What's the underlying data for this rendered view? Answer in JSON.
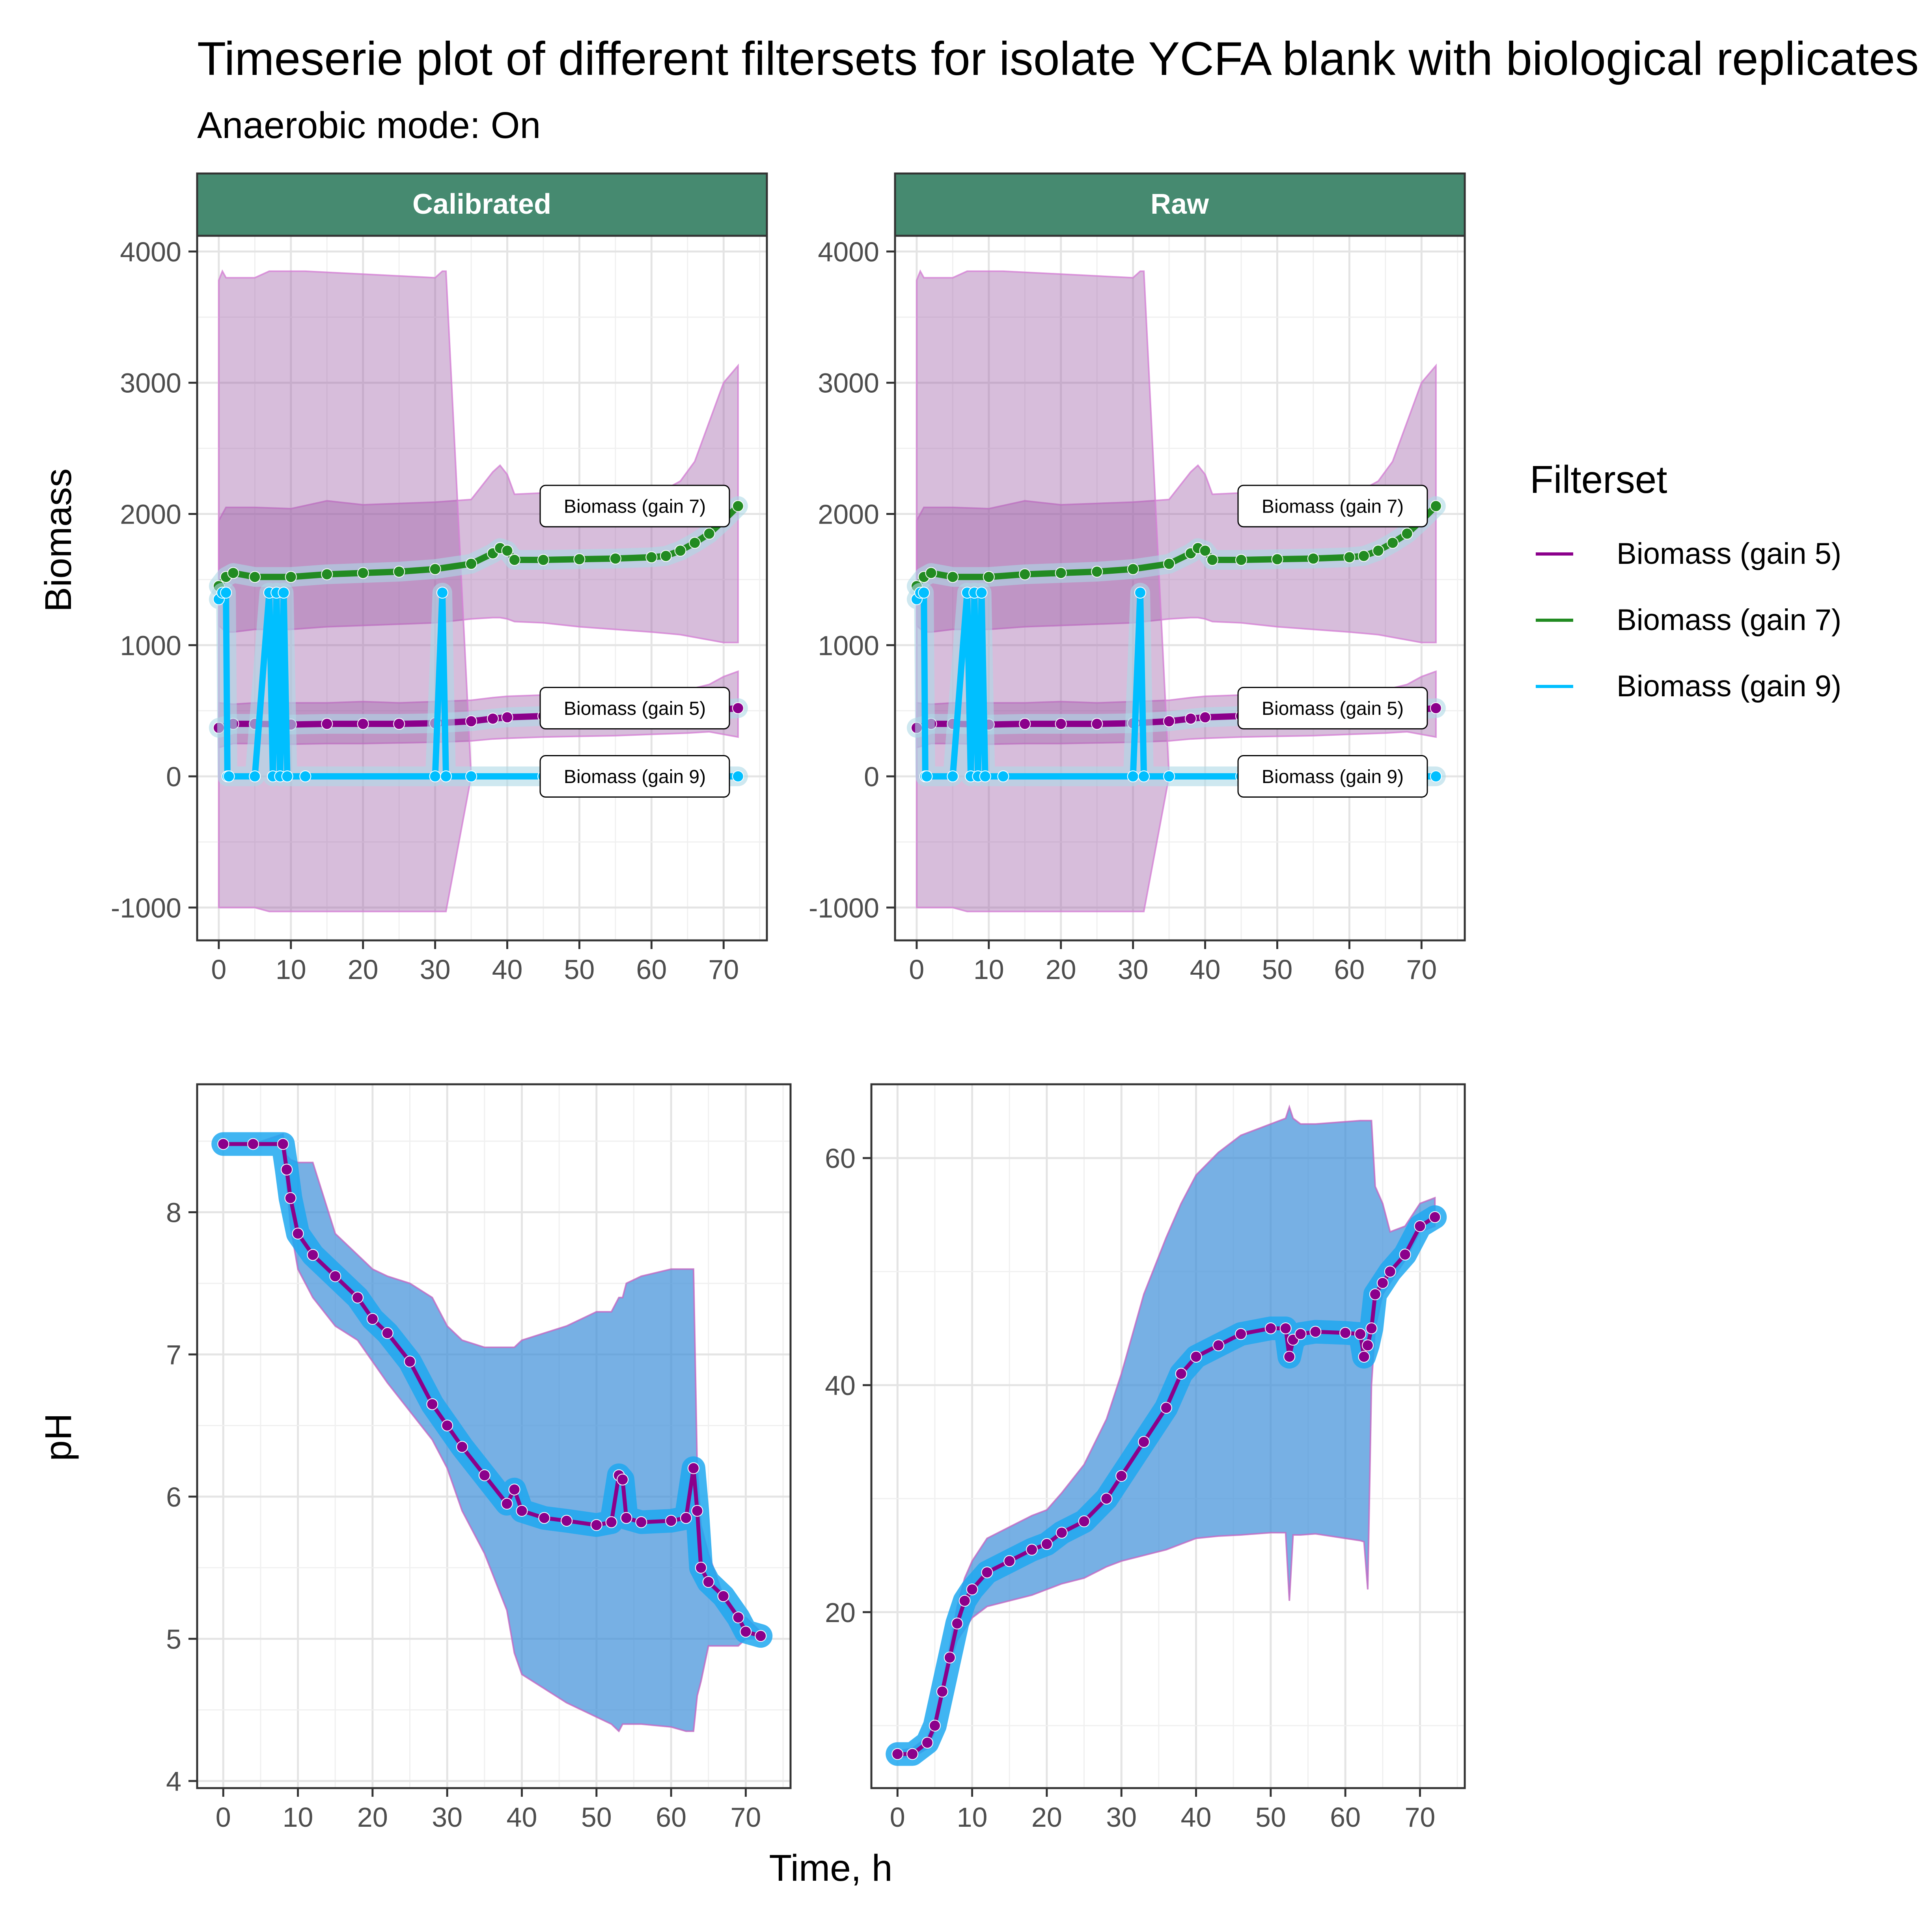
{
  "title": "Timeserie plot of different filtersets for isolate YCFA blank with biological replicates",
  "subtitle": "Anaerobic mode: On",
  "colors": {
    "gain5": "#8B008B",
    "gain7": "#228B22",
    "gain9": "#00BFFF",
    "ribbon_biomass": "#9B59A6",
    "ribbon_ph": "#3D8FD9",
    "strip": "#468A70",
    "halo": "#ADD8E6"
  },
  "legend": {
    "title": "Filterset",
    "items": [
      {
        "label": "Biomass (gain 5)",
        "color": "#8B008B"
      },
      {
        "label": "Biomass (gain 7)",
        "color": "#228B22"
      },
      {
        "label": "Biomass (gain 9)",
        "color": "#00BFFF"
      }
    ]
  },
  "chart_data": [
    {
      "type": "line",
      "facet": "Calibrated",
      "ylabel": "Biomass",
      "xlim": [
        -3,
        76
      ],
      "ylim": [
        -1250,
        4120
      ],
      "xticks": [
        0,
        10,
        20,
        30,
        40,
        50,
        60,
        70
      ],
      "yticks": [
        -1000,
        0,
        1000,
        2000,
        3000,
        4000
      ],
      "grid": true,
      "ribbon_spans": [
        [
          0,
          1.2
        ],
        [
          6.5,
          31.5
        ]
      ],
      "series": [
        {
          "name": "Biomass (gain 5)",
          "label": "Biomass (gain 5)",
          "x": [
            0,
            2,
            5,
            10,
            15,
            20,
            25,
            30,
            35,
            38,
            40,
            45,
            50,
            55,
            60,
            65,
            68,
            70,
            72
          ],
          "y": [
            370,
            400,
            400,
            395,
            400,
            400,
            400,
            405,
            420,
            440,
            450,
            460,
            470,
            480,
            490,
            500,
            505,
            510,
            520
          ],
          "lower": [
            220,
            250,
            250,
            245,
            250,
            250,
            255,
            260,
            270,
            285,
            290,
            300,
            305,
            310,
            320,
            330,
            340,
            320,
            300
          ],
          "upper": [
            560,
            550,
            560,
            560,
            560,
            570,
            560,
            570,
            580,
            600,
            610,
            620,
            620,
            630,
            640,
            660,
            700,
            760,
            800
          ]
        },
        {
          "name": "Biomass (gain 7)",
          "label": "Biomass (gain 7)",
          "x": [
            0,
            1,
            2,
            5,
            10,
            15,
            20,
            25,
            30,
            35,
            38,
            39,
            40,
            41,
            45,
            50,
            55,
            60,
            62,
            64,
            66,
            68,
            70,
            72
          ],
          "y": [
            1450,
            1520,
            1550,
            1520,
            1520,
            1540,
            1550,
            1560,
            1580,
            1620,
            1700,
            1740,
            1720,
            1650,
            1650,
            1655,
            1660,
            1670,
            1680,
            1720,
            1780,
            1850,
            1950,
            2060
          ],
          "lower": [
            1150,
            1100,
            1100,
            1120,
            1120,
            1140,
            1150,
            1160,
            1170,
            1200,
            1210,
            1210,
            1200,
            1180,
            1170,
            1140,
            1120,
            1100,
            1090,
            1080,
            1060,
            1040,
            1020,
            1020
          ],
          "upper": [
            1950,
            2050,
            2050,
            2050,
            2040,
            2100,
            2070,
            2080,
            2090,
            2110,
            2320,
            2370,
            2300,
            2150,
            2160,
            2150,
            2160,
            2180,
            2190,
            2250,
            2400,
            2700,
            3000,
            3130
          ]
        },
        {
          "name": "Biomass (gain 9)",
          "label": "Biomass (gain 9)",
          "x": [
            0,
            0.5,
            1,
            1.2,
            1.4,
            5,
            7,
            7.5,
            8,
            8.5,
            9,
            9.5,
            12,
            30,
            31,
            31.5,
            35,
            45,
            55,
            65,
            72
          ],
          "y": [
            1350,
            1400,
            1400,
            0,
            0,
            0,
            1400,
            0,
            1400,
            0,
            1400,
            0,
            0,
            0,
            1400,
            0,
            0,
            0,
            0,
            0,
            0
          ],
          "lower": [
            -1000,
            -1000,
            -1000,
            -1000,
            -1000,
            -1000,
            -1030,
            -1030,
            -1030,
            -1030,
            -1030,
            -1030,
            -1030,
            -1030,
            -1030,
            -1030,
            0,
            0,
            0,
            0,
            0
          ],
          "upper": [
            3780,
            3850,
            3800,
            3800,
            3800,
            3800,
            3850,
            3850,
            3850,
            3850,
            3850,
            3850,
            3850,
            3800,
            3850,
            3850,
            0,
            0,
            0,
            0,
            0
          ]
        }
      ]
    },
    {
      "type": "line",
      "facet": "Raw",
      "ylabel": "",
      "xlim": [
        -3,
        76
      ],
      "ylim": [
        -1250,
        4120
      ],
      "xticks": [
        0,
        10,
        20,
        30,
        40,
        50,
        60,
        70
      ],
      "yticks": [
        -1000,
        0,
        1000,
        2000,
        3000,
        4000
      ],
      "grid": true,
      "ribbon_spans": [
        [
          0,
          1.2
        ],
        [
          6.5,
          31.5
        ]
      ],
      "series": [
        {
          "name": "Biomass (gain 5)",
          "label": "Biomass (gain 5)",
          "x": [
            0,
            2,
            5,
            10,
            15,
            20,
            25,
            30,
            35,
            38,
            40,
            45,
            50,
            55,
            60,
            65,
            68,
            70,
            72
          ],
          "y": [
            370,
            400,
            400,
            395,
            400,
            400,
            400,
            405,
            420,
            440,
            450,
            460,
            470,
            480,
            490,
            500,
            505,
            510,
            520
          ],
          "lower": [
            220,
            250,
            250,
            245,
            250,
            250,
            255,
            260,
            270,
            285,
            290,
            300,
            305,
            310,
            320,
            330,
            340,
            320,
            300
          ],
          "upper": [
            560,
            550,
            560,
            560,
            560,
            570,
            560,
            570,
            580,
            600,
            610,
            620,
            620,
            630,
            640,
            660,
            700,
            760,
            800
          ]
        },
        {
          "name": "Biomass (gain 7)",
          "label": "Biomass (gain 7)",
          "x": [
            0,
            1,
            2,
            5,
            10,
            15,
            20,
            25,
            30,
            35,
            38,
            39,
            40,
            41,
            45,
            50,
            55,
            60,
            62,
            64,
            66,
            68,
            70,
            72
          ],
          "y": [
            1450,
            1520,
            1550,
            1520,
            1520,
            1540,
            1550,
            1560,
            1580,
            1620,
            1700,
            1740,
            1720,
            1650,
            1650,
            1655,
            1660,
            1670,
            1680,
            1720,
            1780,
            1850,
            1950,
            2060
          ],
          "lower": [
            1150,
            1100,
            1100,
            1120,
            1120,
            1140,
            1150,
            1160,
            1170,
            1200,
            1210,
            1210,
            1200,
            1180,
            1170,
            1140,
            1120,
            1100,
            1090,
            1080,
            1060,
            1040,
            1020,
            1020
          ],
          "upper": [
            1950,
            2050,
            2050,
            2050,
            2040,
            2100,
            2070,
            2080,
            2090,
            2110,
            2320,
            2370,
            2300,
            2150,
            2160,
            2150,
            2160,
            2180,
            2190,
            2250,
            2400,
            2700,
            3000,
            3130
          ]
        },
        {
          "name": "Biomass (gain 9)",
          "label": "Biomass (gain 9)",
          "x": [
            0,
            0.5,
            1,
            1.2,
            1.4,
            5,
            7,
            7.5,
            8,
            8.5,
            9,
            9.5,
            12,
            30,
            31,
            31.5,
            35,
            45,
            55,
            65,
            72
          ],
          "y": [
            1350,
            1400,
            1400,
            0,
            0,
            0,
            1400,
            0,
            1400,
            0,
            1400,
            0,
            0,
            0,
            1400,
            0,
            0,
            0,
            0,
            0,
            0
          ],
          "lower": [
            -1000,
            -1000,
            -1000,
            -1000,
            -1000,
            -1000,
            -1030,
            -1030,
            -1030,
            -1030,
            -1030,
            -1030,
            -1030,
            -1030,
            -1030,
            -1030,
            0,
            0,
            0,
            0,
            0
          ],
          "upper": [
            3780,
            3850,
            3800,
            3800,
            3800,
            3800,
            3850,
            3850,
            3850,
            3850,
            3850,
            3850,
            3850,
            3800,
            3850,
            3850,
            0,
            0,
            0,
            0,
            0
          ]
        }
      ]
    },
    {
      "type": "line",
      "facet": "Calibrated",
      "ylabel": "pH",
      "xlim": [
        -3.5,
        76
      ],
      "ylim": [
        3.95,
        8.9
      ],
      "xticks": [
        0,
        10,
        20,
        30,
        40,
        50,
        60,
        70
      ],
      "yticks": [
        4,
        5,
        6,
        7,
        8
      ],
      "grid": true,
      "series": [
        {
          "name": "Biomass (gain 5)",
          "x": [
            0,
            4,
            8,
            8.5,
            9,
            10,
            12,
            15,
            18,
            20,
            22,
            25,
            28,
            30,
            32,
            35,
            38,
            39,
            40,
            43,
            46,
            50,
            52,
            53,
            53.5,
            54,
            56,
            60,
            62,
            63,
            63.5,
            64,
            65,
            67,
            69,
            70,
            72
          ],
          "y": [
            8.48,
            8.48,
            8.48,
            8.3,
            8.1,
            7.85,
            7.7,
            7.55,
            7.4,
            7.25,
            7.15,
            6.95,
            6.65,
            6.5,
            6.35,
            6.15,
            5.95,
            6.05,
            5.9,
            5.85,
            5.83,
            5.8,
            5.82,
            6.15,
            6.12,
            5.85,
            5.82,
            5.83,
            5.85,
            6.2,
            5.9,
            5.5,
            5.4,
            5.3,
            5.15,
            5.05,
            5.02
          ],
          "lower": [
            8.48,
            8.48,
            8.48,
            8.2,
            7.9,
            7.6,
            7.4,
            7.2,
            7.1,
            6.95,
            6.8,
            6.6,
            6.4,
            6.2,
            5.9,
            5.6,
            5.2,
            4.9,
            4.75,
            4.65,
            4.55,
            4.45,
            4.4,
            4.35,
            4.4,
            4.4,
            4.4,
            4.38,
            4.35,
            4.35,
            4.6,
            4.7,
            4.95,
            4.95,
            4.95,
            5.0,
            5.0
          ],
          "upper": [
            8.48,
            8.48,
            8.55,
            8.4,
            8.37,
            8.35,
            8.35,
            7.85,
            7.7,
            7.6,
            7.55,
            7.5,
            7.4,
            7.2,
            7.1,
            7.05,
            7.05,
            7.05,
            7.1,
            7.15,
            7.2,
            7.3,
            7.3,
            7.4,
            7.4,
            7.5,
            7.55,
            7.6,
            7.6,
            7.6,
            6.2,
            5.8,
            5.6,
            5.3,
            5.15,
            5.15,
            5.05
          ]
        }
      ]
    },
    {
      "type": "line",
      "facet": "Raw",
      "ylabel": "",
      "xlim": [
        -3.5,
        76
      ],
      "ylim": [
        4.5,
        66.5
      ],
      "xticks": [
        0,
        10,
        20,
        30,
        40,
        50,
        60,
        70
      ],
      "yticks": [
        20,
        40,
        60
      ],
      "grid": true,
      "series": [
        {
          "name": "Biomass (gain 5)",
          "x": [
            0,
            2,
            4,
            5,
            6,
            7,
            8,
            9,
            10,
            12,
            15,
            18,
            20,
            22,
            25,
            28,
            30,
            33,
            36,
            38,
            40,
            43,
            46,
            50,
            52,
            52.5,
            53,
            54,
            56,
            60,
            62,
            62.5,
            63,
            63.5,
            64,
            65,
            66,
            68,
            70,
            72
          ],
          "y": [
            7.5,
            7.5,
            8.5,
            10,
            13,
            16,
            19,
            21,
            22,
            23.5,
            24.5,
            25.5,
            26,
            27,
            28,
            30,
            32,
            35,
            38,
            41,
            42.5,
            43.5,
            44.5,
            45,
            45,
            42.5,
            44,
            44.5,
            44.7,
            44.6,
            44.5,
            42.5,
            43.5,
            45,
            48,
            49,
            50,
            51.5,
            54,
            54.8
          ],
          "lower": [
            7.2,
            7.2,
            8,
            9.5,
            12.5,
            15.5,
            17.5,
            18.5,
            19.5,
            20.5,
            21,
            21.5,
            22,
            22.5,
            23,
            24,
            24.5,
            25,
            25.5,
            26,
            26.5,
            26.7,
            26.8,
            27,
            27,
            21,
            26.8,
            26.8,
            26.9,
            26.5,
            26.3,
            26.2,
            22,
            40,
            45,
            48,
            49,
            51,
            53.5,
            54
          ],
          "upper": [
            7.8,
            8,
            9,
            10.5,
            13.5,
            17,
            20.5,
            23,
            24.5,
            26.5,
            27.5,
            28.5,
            29,
            30.5,
            33,
            37,
            41,
            48,
            53,
            56,
            58.5,
            60.5,
            62,
            63,
            63.5,
            64.5,
            63.5,
            63,
            63,
            63.2,
            63.3,
            63.3,
            63.3,
            63.3,
            57.5,
            56,
            53.5,
            54,
            56,
            56.5
          ]
        }
      ]
    }
  ]
}
